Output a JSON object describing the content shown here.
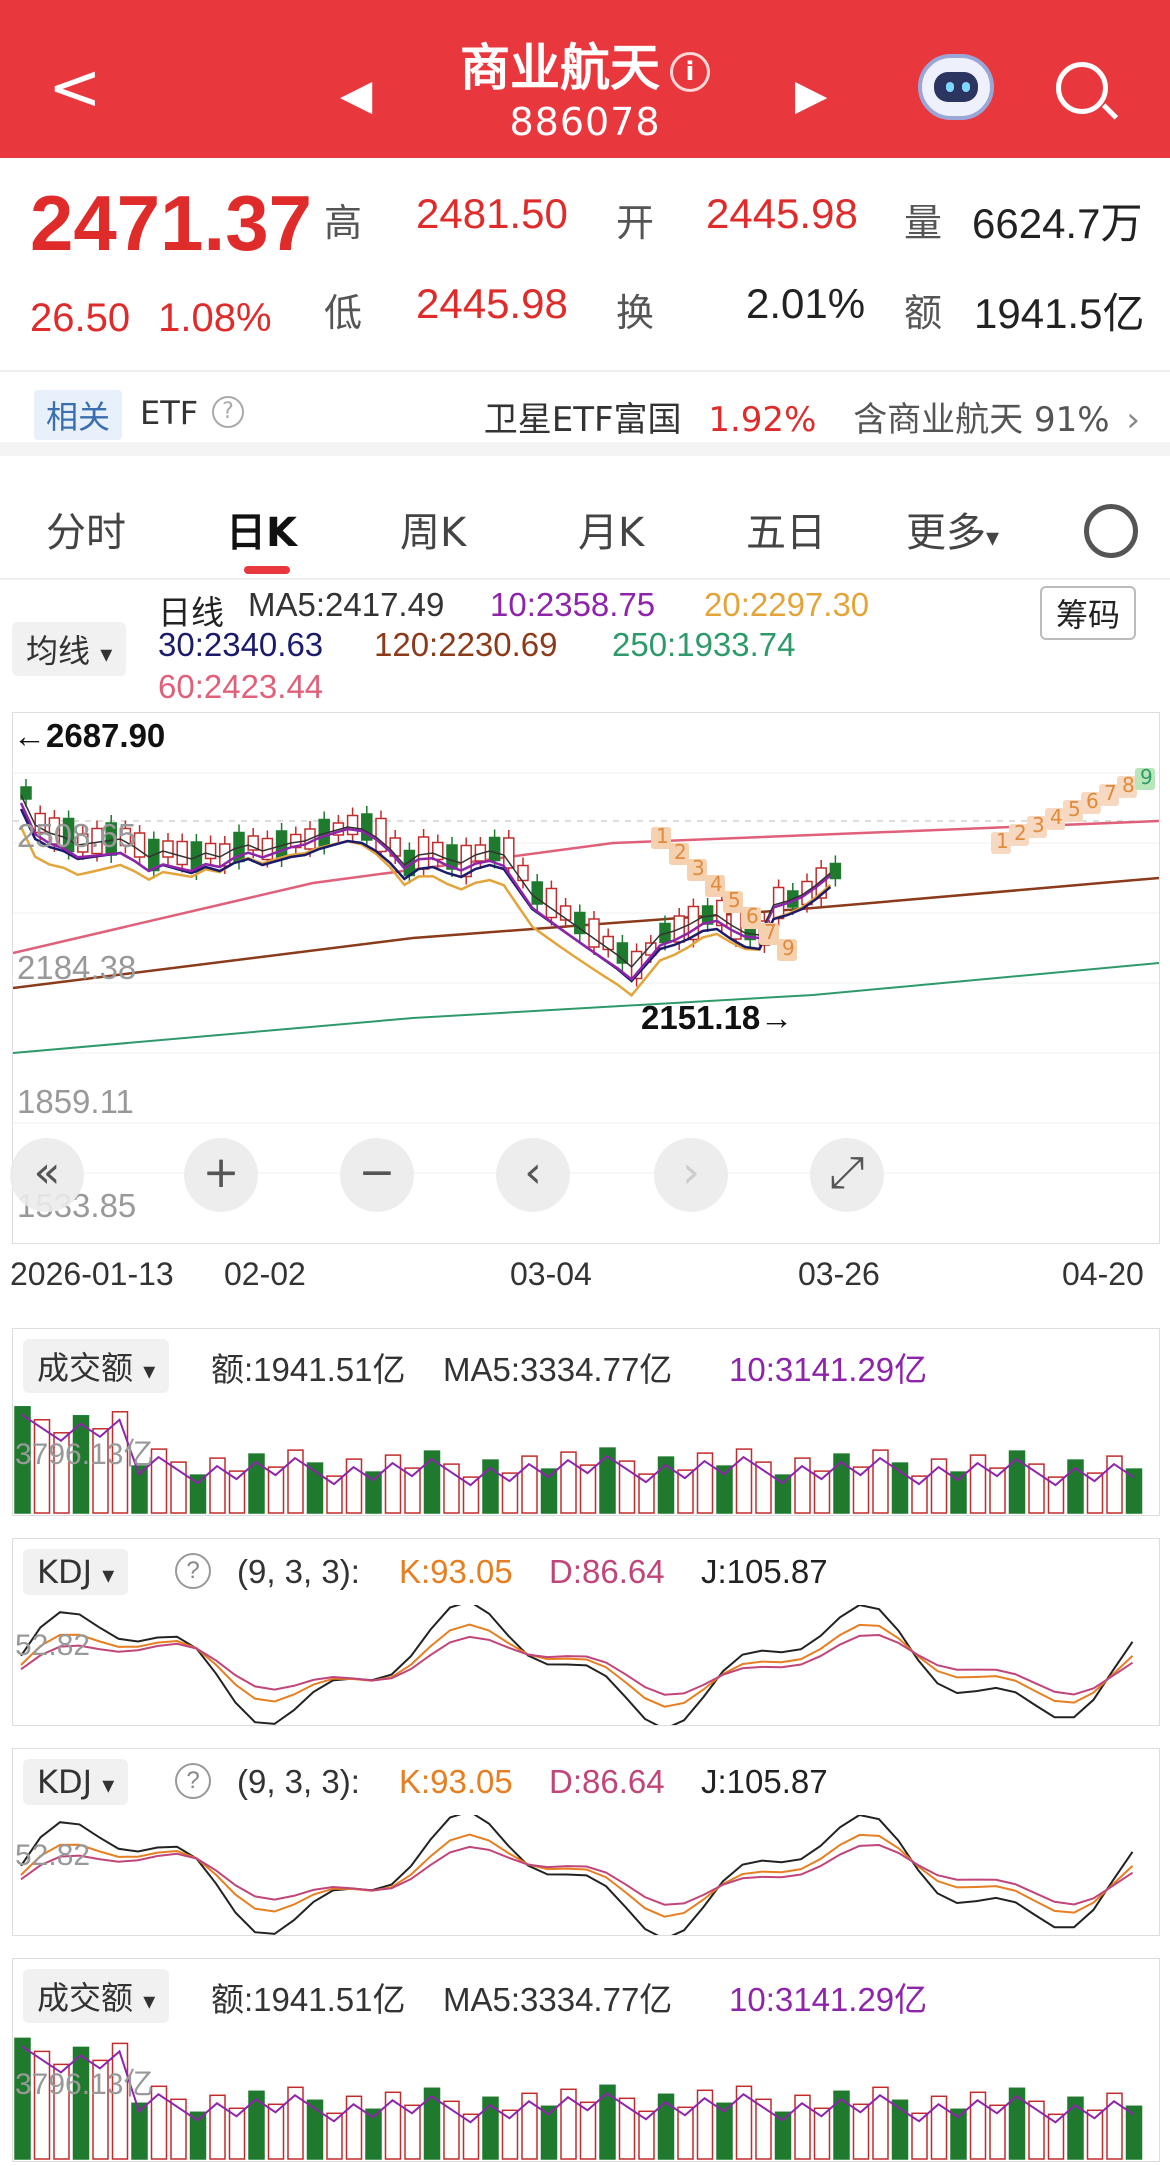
{
  "header": {
    "back_icon": "chevron-left-icon",
    "title": "商业航天",
    "info_icon": "ⓘ",
    "code": "886078",
    "prev_icon": "◀",
    "next_icon": "▶"
  },
  "quote": {
    "price": "2471.37",
    "change": "26.50",
    "change_pct": "1.08%",
    "high_label": "高",
    "high": "2481.50",
    "open_label": "开",
    "open": "2445.98",
    "vol_label": "量",
    "vol": "6624.7万",
    "low_label": "低",
    "low": "2445.98",
    "turn_label": "换",
    "turn": "2.01%",
    "amt_label": "额",
    "amt": "1941.5亿"
  },
  "etf": {
    "tag": "相关",
    "label": "ETF",
    "help": "?",
    "name": "卫星ETF富国",
    "pct": "1.92%",
    "contain": "含商业航天 91%",
    "chevron": "›"
  },
  "tabs": [
    "分时",
    "日K",
    "周K",
    "月K",
    "五日",
    "更多"
  ],
  "tabs_more_arrow": "▾",
  "ma": {
    "dropdown": "均线",
    "arrow": "▾",
    "period": "日线",
    "ma5": "MA5:2417.49",
    "ma10": "10:2358.75",
    "ma20": "20:2297.30",
    "ma30": "30:2340.63",
    "ma120": "120:2230.69",
    "ma250": "250:1933.74",
    "ma60": "60:2423.44",
    "chip": "筹码"
  },
  "kline": {
    "ylabels": [
      "2687.90",
      "2508.65",
      "2184.38",
      "1859.11",
      "1533.85"
    ],
    "high_mark": "←2687.90",
    "low_mark": "2151.18→",
    "dates": [
      "2026-01-13",
      "02-02",
      "03-04",
      "03-26",
      "04-20"
    ],
    "td_down": [
      "1",
      "2",
      "3",
      "4",
      "5",
      "6",
      "7",
      "9"
    ],
    "td_up": [
      "1",
      "2",
      "3",
      "4",
      "5",
      "6",
      "7",
      "8",
      "9"
    ],
    "colors": {
      "up": "#c22b2b",
      "down": "#1f7a2e",
      "ma5": "#333333",
      "ma10": "#8e24aa",
      "ma20": "#e3a53a",
      "ma30": "#1b1b6b",
      "ma60": "#e0607a",
      "ma120": "#8b3a1a",
      "ma250": "#2e9a6a"
    }
  },
  "controls": {
    "fast_back": "«",
    "zoom_in": "+",
    "zoom_out": "−",
    "left": "‹",
    "right": "›",
    "fullscreen": "⤢"
  },
  "volume1": {
    "dropdown": "成交额",
    "arrow": "▾",
    "amt": "额:1941.51亿",
    "ma5": "MA5:3334.77亿",
    "ma10": "10:3141.29亿",
    "ylabel": "3796.13亿"
  },
  "kdj1": {
    "dropdown": "KDJ",
    "arrow": "▾",
    "help": "?",
    "params": "(9, 3, 3):",
    "k": "K:93.05",
    "d": "D:86.64",
    "j": "J:105.87",
    "ylabel": "52.82"
  },
  "kdj2": {
    "dropdown": "KDJ",
    "arrow": "▾",
    "help": "?",
    "params": "(9, 3, 3):",
    "k": "K:93.05",
    "d": "D:86.64",
    "j": "J:105.87",
    "ylabel": "52.82"
  },
  "volume2": {
    "dropdown": "成交额",
    "arrow": "▾",
    "amt": "额:1941.51亿",
    "ma5": "MA5:3334.77亿",
    "ma10": "10:3141.29亿",
    "ylabel": "3796.13亿"
  }
}
